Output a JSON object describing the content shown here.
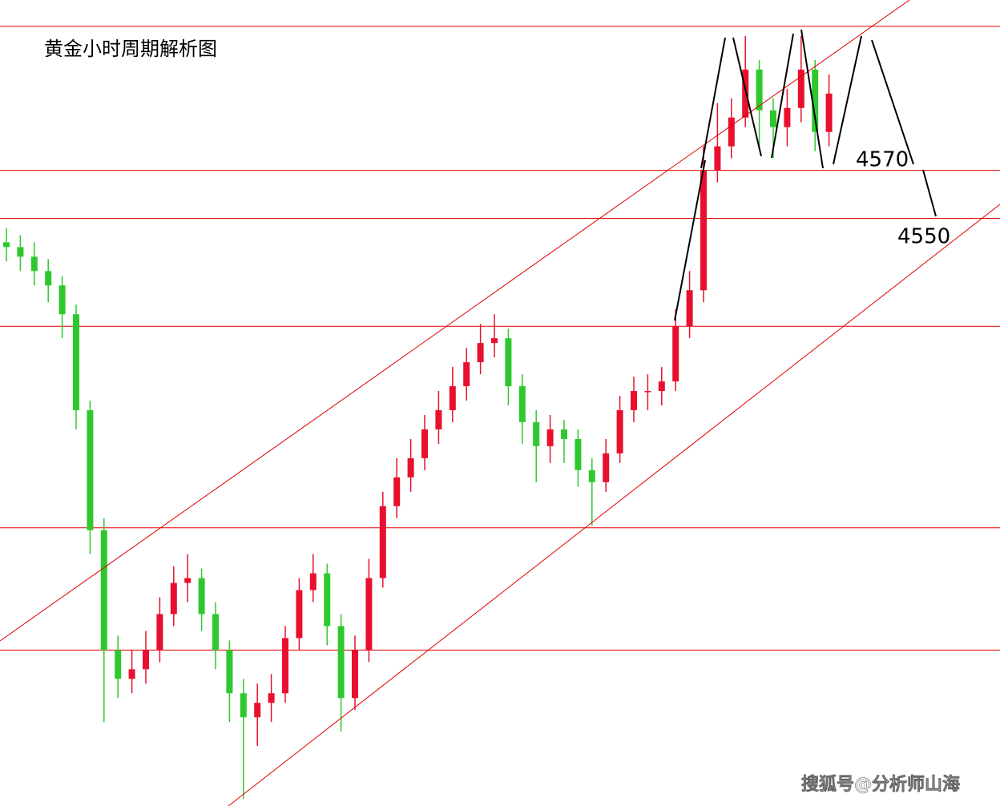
{
  "chart_data": {
    "type": "candlestick",
    "title": "黄金小时周期解析图",
    "annotations": [
      "4570",
      "4550"
    ],
    "watermark": "搜狐号@分析师山海",
    "ylim": [
      4305,
      4641
    ],
    "up_color": "#e8102e",
    "down_color": "#2ec82e",
    "level_color": "#e00000",
    "levels": [
      4630,
      4570,
      4550,
      4505,
      4421,
      4370
    ],
    "open": [
      4540,
      4538,
      4534,
      4528,
      4522,
      4510,
      4470,
      4420,
      4370,
      4358,
      4362,
      4370,
      4385,
      4398,
      4400,
      4385,
      4370,
      4352,
      4342,
      4348,
      4352,
      4375,
      4395,
      4402,
      4380,
      4350,
      4370,
      4400,
      4430,
      4442,
      4450,
      4462,
      4470,
      4480,
      4490,
      4498,
      4500,
      4480,
      4465,
      4455,
      4462,
      4458,
      4445,
      4440,
      4452,
      4470,
      4478,
      4478,
      4482,
      4505,
      4520,
      4570,
      4580,
      4592,
      4612,
      4595,
      4588,
      4596,
      4612,
      4586
    ],
    "high": [
      4546,
      4543,
      4540,
      4533,
      4526,
      4514,
      4474,
      4425,
      4376,
      4370,
      4378,
      4392,
      4405,
      4410,
      4404,
      4390,
      4374,
      4358,
      4356,
      4360,
      4380,
      4400,
      4410,
      4406,
      4385,
      4376,
      4408,
      4436,
      4450,
      4458,
      4468,
      4478,
      4488,
      4496,
      4506,
      4510,
      4504,
      4485,
      4470,
      4468,
      4466,
      4462,
      4450,
      4458,
      4476,
      4484,
      4485,
      4488,
      4512,
      4528,
      4580,
      4598,
      4600,
      4626,
      4616,
      4600,
      4604,
      4626,
      4616,
      4610
    ],
    "low": [
      4532,
      4528,
      4522,
      4515,
      4500,
      4462,
      4410,
      4340,
      4350,
      4352,
      4356,
      4365,
      4380,
      4390,
      4378,
      4362,
      4340,
      4308,
      4330,
      4340,
      4348,
      4370,
      4390,
      4372,
      4336,
      4345,
      4365,
      4396,
      4425,
      4436,
      4445,
      4456,
      4465,
      4474,
      4485,
      4492,
      4472,
      4456,
      4440,
      4448,
      4448,
      4438,
      4422,
      4436,
      4448,
      4465,
      4470,
      4472,
      4478,
      4500,
      4515,
      4565,
      4575,
      4588,
      4580,
      4575,
      4580,
      4590,
      4578,
      4580
    ],
    "close": [
      4538,
      4534,
      4528,
      4522,
      4510,
      4470,
      4420,
      4370,
      4358,
      4362,
      4370,
      4385,
      4398,
      4400,
      4385,
      4370,
      4352,
      4342,
      4348,
      4352,
      4375,
      4395,
      4402,
      4380,
      4350,
      4370,
      4400,
      4430,
      4442,
      4450,
      4462,
      4470,
      4480,
      4490,
      4498,
      4500,
      4480,
      4465,
      4455,
      4462,
      4458,
      4445,
      4440,
      4452,
      4470,
      4478,
      4478,
      4482,
      4505,
      4520,
      4570,
      4580,
      4592,
      4612,
      4595,
      4588,
      4596,
      4612,
      4586,
      4602
    ]
  }
}
